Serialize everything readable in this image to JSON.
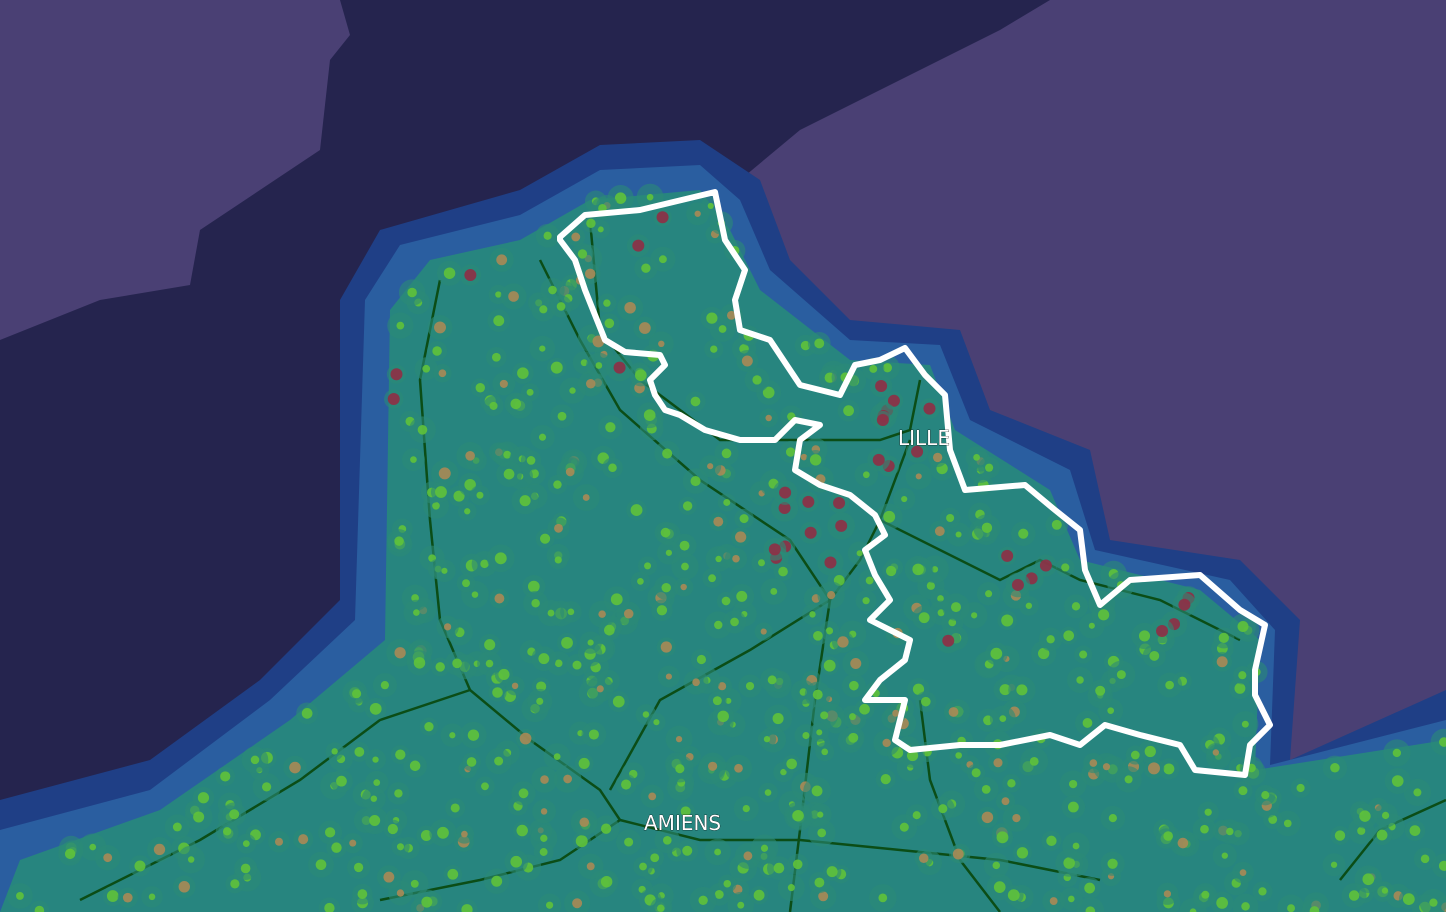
{
  "map": {
    "labels": {
      "lille": "LILLE",
      "amiens": "AMIENS"
    },
    "colors": {
      "land": "#4a4074",
      "sea": "#25244e",
      "heat_outer": "#1f3f86",
      "heat_mid": "#2a5ea0",
      "heat_inner": "#27857f",
      "heat_core": "#2b8b76",
      "dot_low": "#5fc23a",
      "dot_mid": "#a98a55",
      "dot_high": "#8f2f45",
      "road": "#0b4d16",
      "region_outline": "#ffffff"
    }
  }
}
